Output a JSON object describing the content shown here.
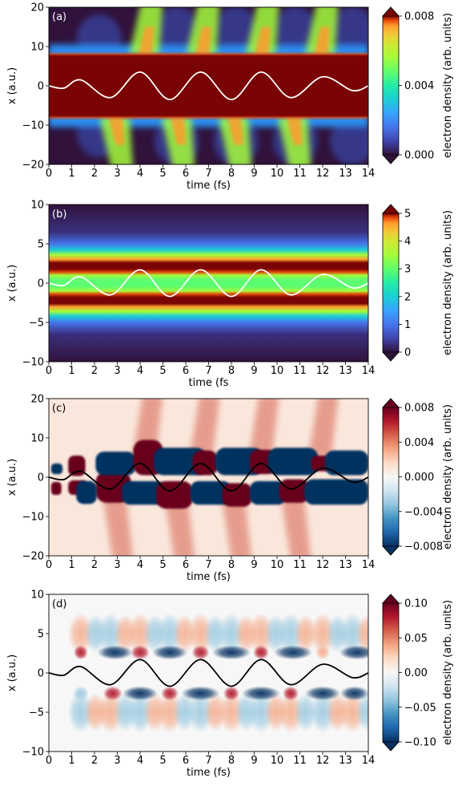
{
  "chart_data": [
    {
      "type": "heatmap",
      "panel_label": "(a)",
      "xlabel": "time (fs)",
      "ylabel": "x (a.u.)",
      "xlim": [
        0,
        14
      ],
      "ylim": [
        -20,
        20
      ],
      "xticks": [
        0,
        1,
        2,
        3,
        4,
        5,
        6,
        7,
        8,
        9,
        10,
        11,
        12,
        13,
        14
      ],
      "yticks": [
        -20,
        -10,
        0,
        10,
        20
      ],
      "colorbar": {
        "label": "electron density (arb. units)",
        "colormap": "turbo",
        "range": [
          0,
          0.008
        ],
        "ticks": [
          0.0,
          0.004,
          0.008
        ],
        "tick_labels": [
          "0.000",
          "0.004",
          "0.008"
        ],
        "extend": "both"
      },
      "overlay_line": {
        "color": "#ffffff",
        "points": [
          [
            0,
            0
          ],
          [
            0.65,
            -0.6
          ],
          [
            1.4,
            1.5
          ],
          [
            2.7,
            -3.0
          ],
          [
            4.0,
            3.5
          ],
          [
            5.3,
            -3.5
          ],
          [
            6.65,
            3.5
          ],
          [
            8.0,
            -3.5
          ],
          [
            9.3,
            3.5
          ],
          [
            10.6,
            -3.0
          ],
          [
            12.0,
            2.3
          ],
          [
            13.3,
            -1.2
          ],
          [
            14,
            0
          ]
        ]
      },
      "description_values": {
        "central_band_halfwidth_x": 8,
        "bursts_top_at_time": [
          4.3,
          6.8,
          9.4,
          12.0
        ],
        "bursts_bottom_at_time": [
          3.0,
          5.7,
          8.2,
          10.8
        ]
      }
    },
    {
      "type": "heatmap",
      "panel_label": "(b)",
      "xlabel": "time (fs",
      "ylabel": "x (a.u.)",
      "xlim": [
        0,
        14
      ],
      "ylim": [
        -10,
        10
      ],
      "xticks": [
        0,
        1,
        2,
        3,
        4,
        5,
        6,
        7,
        8,
        9,
        10,
        11,
        12,
        13,
        14
      ],
      "yticks": [
        -10,
        -5,
        0,
        5,
        10
      ],
      "colorbar": {
        "label": "electron density (arb. units)",
        "colormap": "turbo",
        "range": [
          0,
          5
        ],
        "ticks": [
          0,
          1,
          2,
          3,
          4,
          5
        ],
        "tick_labels": [
          "0",
          "1",
          "2",
          "3",
          "4",
          "5"
        ],
        "extend": "both"
      },
      "overlay_line": {
        "color": "#ffffff",
        "points": [
          [
            0,
            0
          ],
          [
            0.65,
            -0.3
          ],
          [
            1.4,
            0.8
          ],
          [
            2.7,
            -1.5
          ],
          [
            4.0,
            1.7
          ],
          [
            5.3,
            -1.7
          ],
          [
            6.65,
            1.7
          ],
          [
            8.0,
            -1.7
          ],
          [
            9.3,
            1.7
          ],
          [
            10.6,
            -1.5
          ],
          [
            12.0,
            1.1
          ],
          [
            13.3,
            -0.6
          ],
          [
            14,
            0
          ]
        ]
      },
      "description_values": {
        "band_centers_x": [
          2.2,
          0,
          -2.2
        ],
        "outer_glow_halfwidth_x": 5
      }
    },
    {
      "type": "heatmap",
      "panel_label": "(c)",
      "xlabel": "time (fs)",
      "ylabel": "x (a.u.)",
      "xlim": [
        0,
        14
      ],
      "ylim": [
        -20,
        20
      ],
      "xticks": [
        0,
        1,
        2,
        3,
        4,
        5,
        6,
        7,
        8,
        9,
        10,
        11,
        12,
        13,
        14
      ],
      "yticks": [
        -20,
        -10,
        0,
        10,
        20
      ],
      "colorbar": {
        "label": "electron density (arb. units)",
        "colormap": "RdBu_r",
        "range": [
          -0.008,
          0.008
        ],
        "ticks": [
          -0.008,
          -0.004,
          0.0,
          0.004,
          0.008
        ],
        "tick_labels": [
          "-0.008",
          "-0.004",
          "0.000",
          "0.004",
          "0.008"
        ],
        "extend": "both"
      },
      "overlay_line": {
        "color": "#000000",
        "points": [
          [
            0,
            0
          ],
          [
            0.65,
            -0.6
          ],
          [
            1.4,
            1.5
          ],
          [
            2.7,
            -3.0
          ],
          [
            4.0,
            3.5
          ],
          [
            5.3,
            -3.5
          ],
          [
            6.65,
            3.5
          ],
          [
            8.0,
            -3.5
          ],
          [
            9.3,
            3.5
          ],
          [
            10.6,
            -3.0
          ],
          [
            12.0,
            2.3
          ],
          [
            13.3,
            -1.2
          ],
          [
            14,
            0
          ]
        ]
      }
    },
    {
      "type": "heatmap",
      "panel_label": "(d)",
      "xlabel": "time (fs)",
      "ylabel": "x (a.u.)",
      "xlim": [
        0,
        14
      ],
      "ylim": [
        -10,
        10
      ],
      "xticks": [
        0,
        1,
        2,
        3,
        4,
        5,
        6,
        7,
        8,
        9,
        10,
        11,
        12,
        13,
        14
      ],
      "yticks": [
        -10,
        -5,
        0,
        5,
        10
      ],
      "colorbar": {
        "label": "electron density (arb. units)",
        "colormap": "RdBu_r",
        "range": [
          -0.1,
          0.1
        ],
        "ticks": [
          -0.1,
          -0.05,
          0.0,
          0.05,
          0.1
        ],
        "tick_labels": [
          "-0.10",
          "-0.05",
          "0.00",
          "0.05",
          "0.10"
        ],
        "extend": "both"
      },
      "overlay_line": {
        "color": "#000000",
        "points": [
          [
            0,
            0
          ],
          [
            0.65,
            -0.3
          ],
          [
            1.4,
            0.8
          ],
          [
            2.7,
            -1.5
          ],
          [
            4.0,
            1.7
          ],
          [
            5.3,
            -1.7
          ],
          [
            6.65,
            1.7
          ],
          [
            8.0,
            -1.7
          ],
          [
            9.3,
            1.7
          ],
          [
            10.6,
            -1.5
          ],
          [
            12.0,
            1.1
          ],
          [
            13.3,
            -0.6
          ],
          [
            14,
            0
          ]
        ]
      }
    }
  ]
}
